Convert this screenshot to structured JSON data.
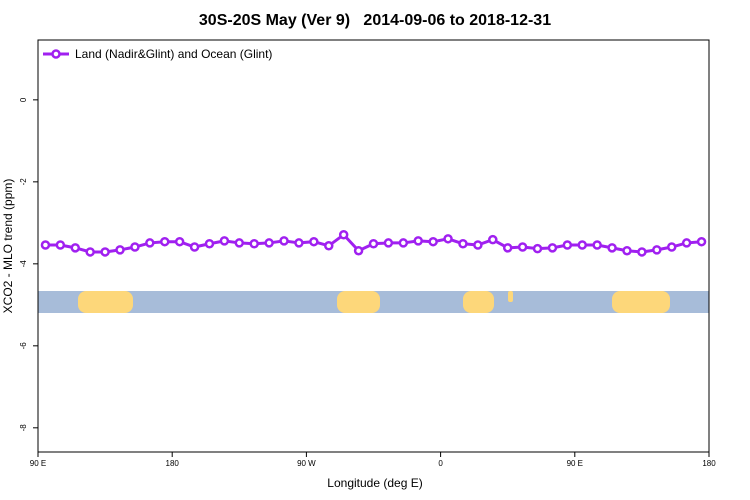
{
  "chart_data": {
    "type": "line",
    "title": "30S-20S May (Ver 9)   2014-09-06 to 2018-12-31",
    "xlabel": "Longitude (deg E)",
    "ylabel": "XCO2 - MLO trend (ppm)",
    "x": [
      95,
      105,
      115,
      125,
      135,
      145,
      155,
      165,
      175,
      185,
      195,
      205,
      215,
      225,
      235,
      245,
      255,
      265,
      275,
      285,
      295,
      305,
      315,
      325,
      335,
      345,
      355,
      365,
      375,
      385,
      395,
      405,
      415,
      425,
      435,
      445,
      455,
      465,
      475,
      485,
      495,
      505,
      515,
      525,
      535
    ],
    "series": [
      {
        "name": "Land (Nadir&Glint) and Ocean (Glint)",
        "color": "#a020f0",
        "values": [
          -3.54,
          -3.54,
          -3.61,
          -3.71,
          -3.71,
          -3.66,
          -3.59,
          -3.49,
          -3.46,
          -3.46,
          -3.59,
          -3.51,
          -3.44,
          -3.49,
          -3.51,
          -3.49,
          -3.44,
          -3.49,
          -3.46,
          -3.56,
          -3.29,
          -3.68,
          -3.51,
          -3.49,
          -3.49,
          -3.44,
          -3.46,
          -3.39,
          -3.51,
          -3.54,
          -3.41,
          -3.61,
          -3.59,
          -3.63,
          -3.61,
          -3.54,
          -3.54,
          -3.54,
          -3.61,
          -3.68,
          -3.71,
          -3.66,
          -3.59,
          -3.49,
          -3.46
        ]
      }
    ],
    "xlim": [
      90,
      540
    ],
    "xticks": [
      {
        "value": 90,
        "label": "90 E"
      },
      180,
      {
        "value": 270,
        "label": "90 W"
      },
      {
        "value": 360,
        "label": "0"
      },
      {
        "value": 450,
        "label": "90 E"
      },
      {
        "value": 540,
        "label": "180"
      }
    ],
    "ylim": [
      -8.59,
      1.46
    ],
    "yticks": [
      0,
      -2,
      -4,
      -6,
      -8
    ],
    "legend": "top-left"
  }
}
